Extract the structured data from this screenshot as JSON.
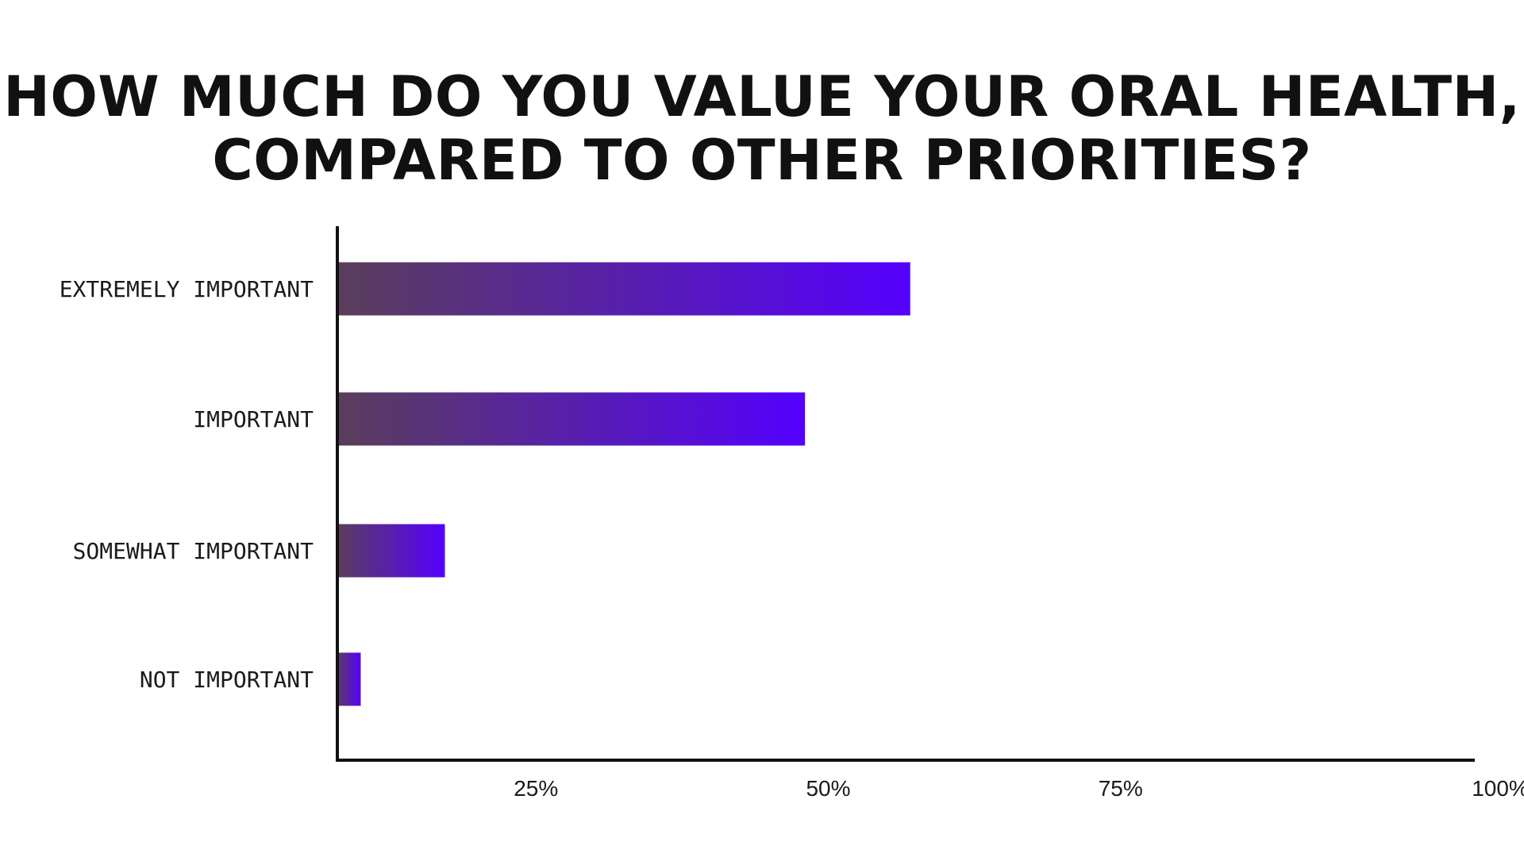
{
  "chart_data": {
    "type": "bar",
    "orientation": "horizontal",
    "title_lines": [
      "HOW MUCH DO YOU VALUE YOUR ORAL HEALTH,",
      "COMPARED TO OTHER PRIORITIES?"
    ],
    "categories": [
      "EXTREMELY IMPORTANT",
      "IMPORTANT",
      "SOMEWHAT IMPORTANT",
      "NOT IMPORTANT"
    ],
    "values": [
      49,
      40,
      9.2,
      2
    ],
    "xlim": [
      0,
      100
    ],
    "x_ticks": [
      25,
      50,
      75,
      100
    ],
    "x_tick_labels": [
      "25%",
      "50%",
      "75%",
      "100%"
    ],
    "grid": false,
    "colors": {
      "bar_start": "#5a3e5a",
      "bar_end": "#5500ff",
      "axis": "#111111"
    }
  }
}
